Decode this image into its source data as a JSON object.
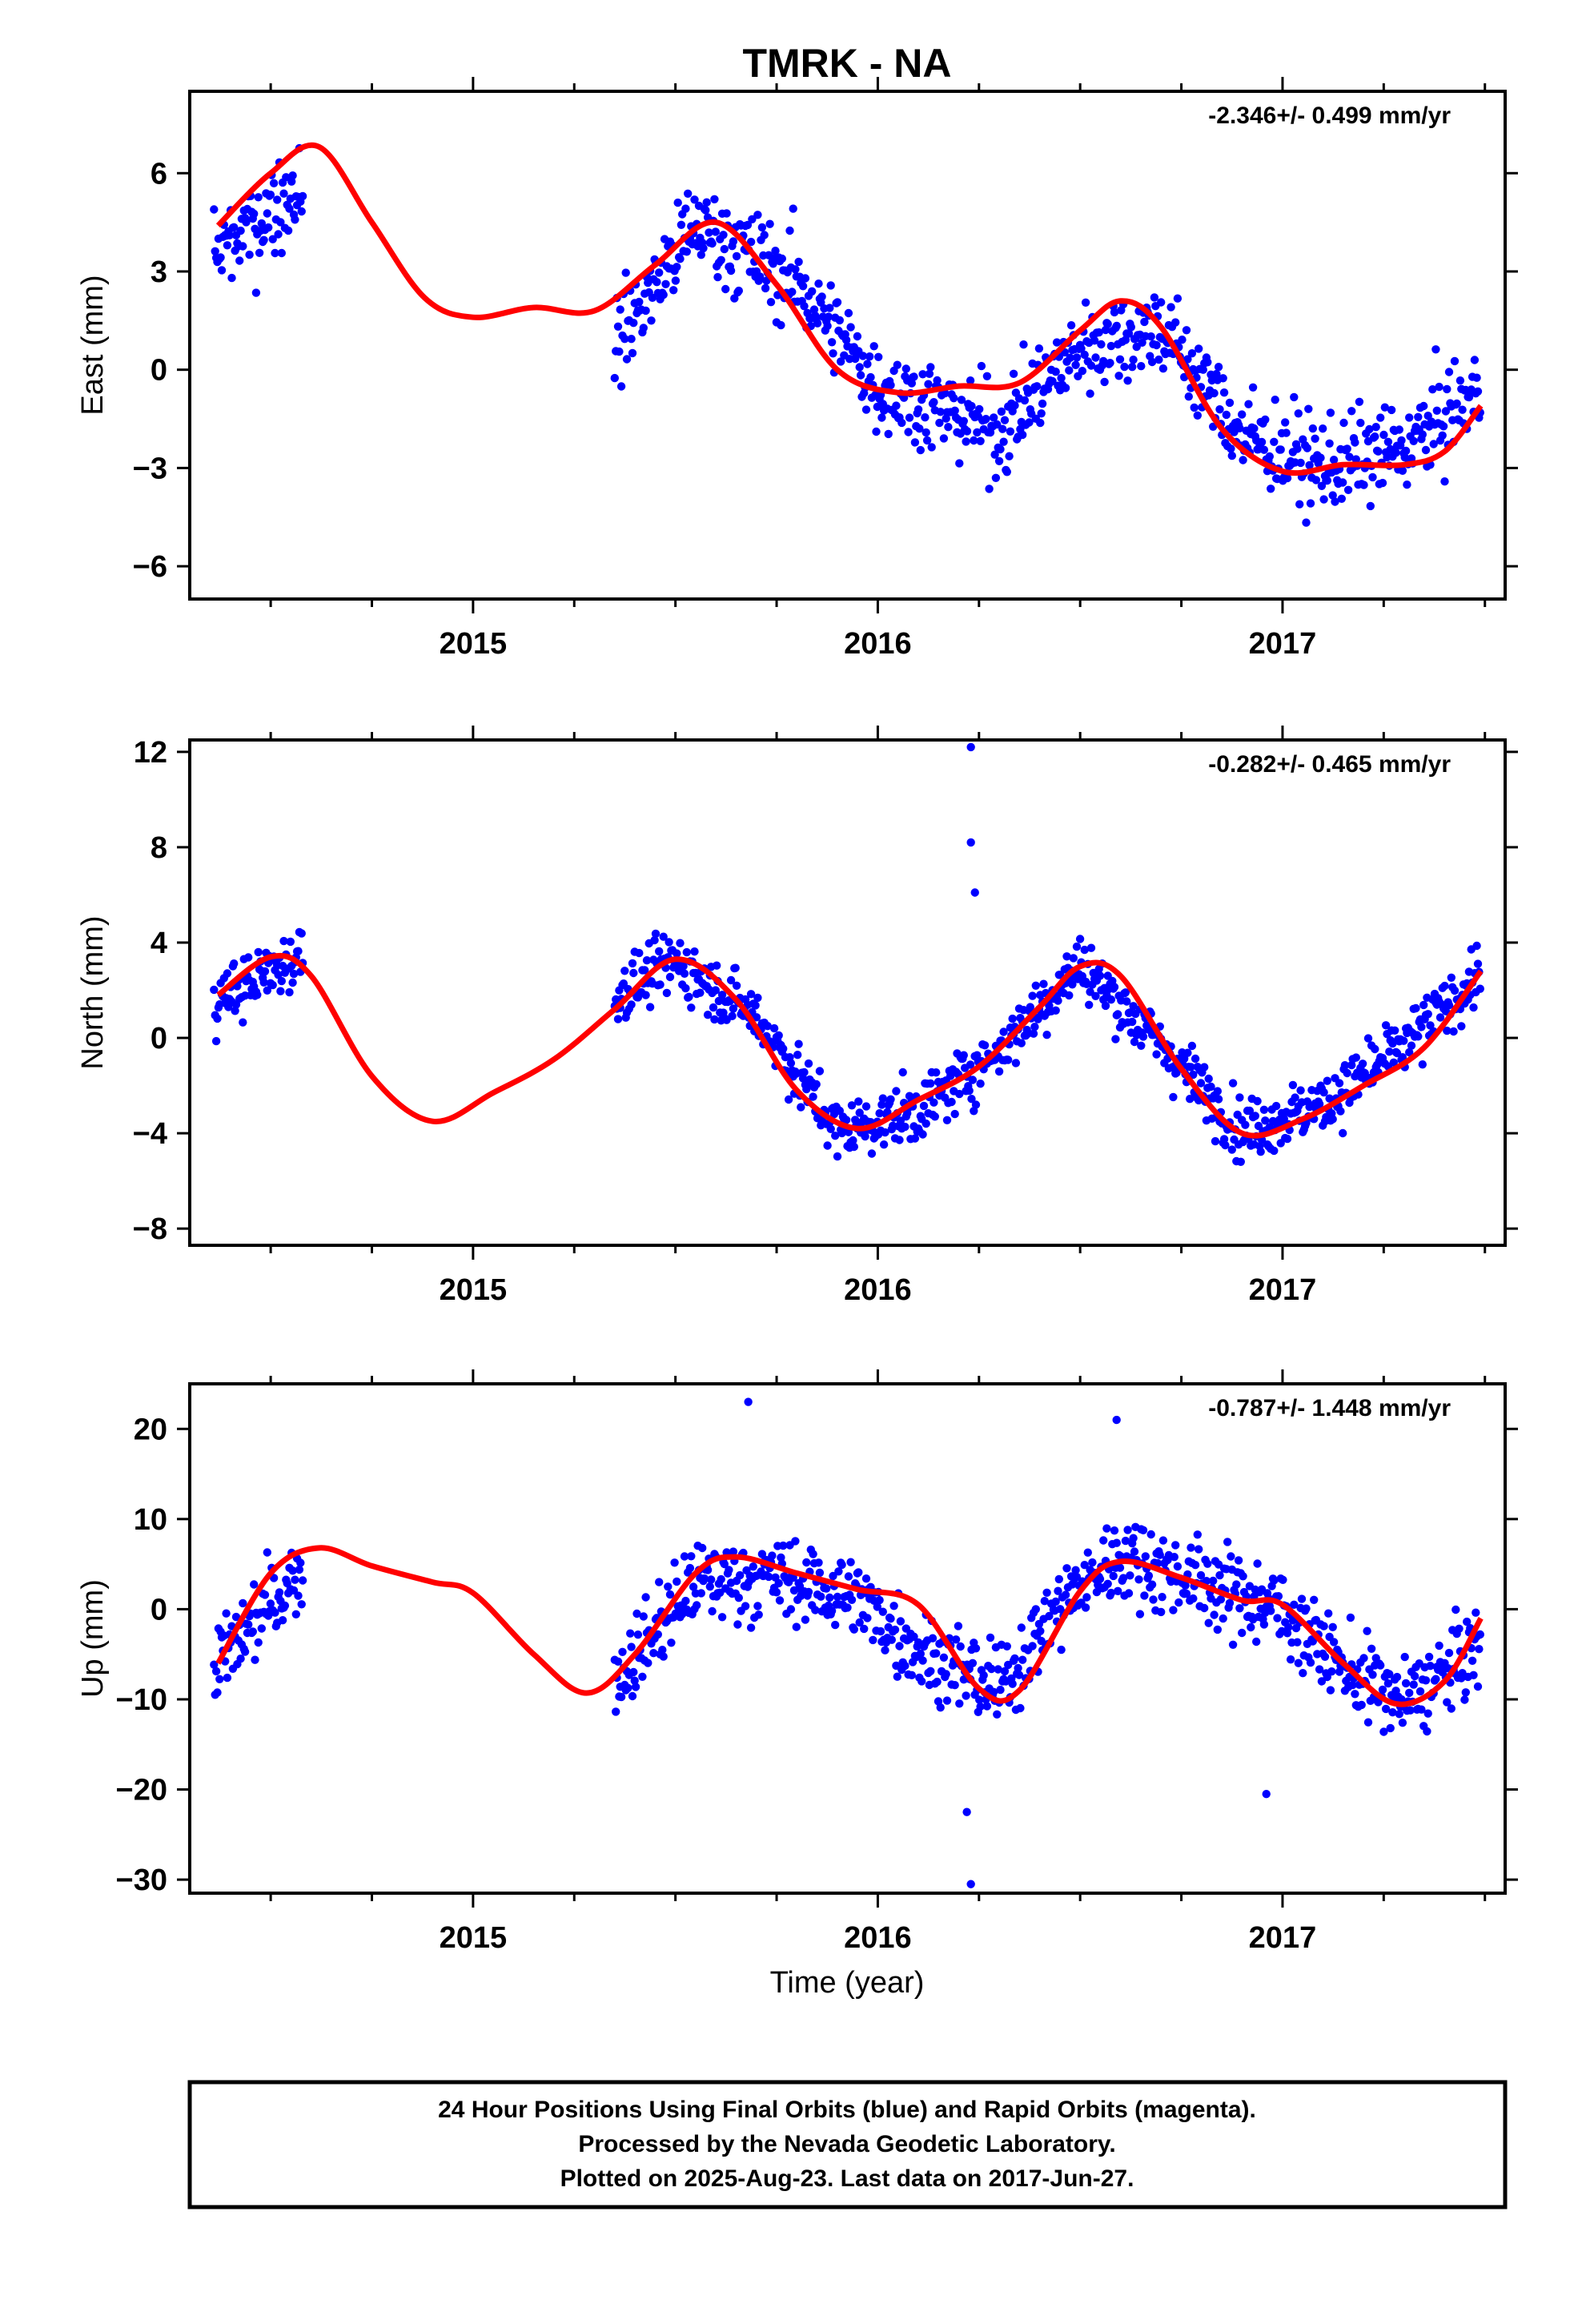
{
  "title": "TMRK - NA",
  "xlabel": "Time (year)",
  "footer": {
    "lines": [
      "24 Hour Positions Using Final Orbits (blue) and Rapid Orbits (magenta).",
      "Processed by the Nevada Geodetic Laboratory.",
      "Plotted on 2025-Aug-23. Last data on 2017-Jun-27."
    ]
  },
  "colors": {
    "points": "#0000ff",
    "fit": "#ff0000",
    "frame": "#000000"
  },
  "chart_data": [
    {
      "type": "scatter",
      "ylabel": "East (mm)",
      "rate_label": "-2.346+/- 0.499 mm/yr",
      "xlim": [
        2014.3,
        2017.55
      ],
      "ylim": [
        -7,
        8.5
      ],
      "xticks": [
        2015,
        2016,
        2017
      ],
      "yticks": [
        -6,
        -3,
        0,
        3,
        6
      ],
      "segments": [
        {
          "x": [
            2014.36,
            2014.58
          ],
          "y": [
            3.4,
            5.7
          ]
        },
        {
          "x": [
            2015.35,
            2015.55,
            2015.8,
            2016.0,
            2016.3,
            2016.5,
            2016.7,
            2016.9,
            2017.1,
            2017.3,
            2017.49
          ],
          "y": [
            0.8,
            4.4,
            2.7,
            -0.5,
            -1.9,
            0.7,
            1.3,
            -2.0,
            -3.0,
            -2.4,
            -0.6
          ]
        }
      ],
      "fit": {
        "x": [
          2014.37,
          2014.5,
          2014.62,
          2014.75,
          2014.88,
          2015.0,
          2015.15,
          2015.3,
          2015.45,
          2015.6,
          2015.75,
          2015.9,
          2016.05,
          2016.2,
          2016.35,
          2016.5,
          2016.6,
          2016.7,
          2016.85,
          2017.0,
          2017.15,
          2017.3,
          2017.4,
          2017.49
        ],
        "y": [
          4.4,
          6.0,
          6.8,
          4.5,
          2.2,
          1.6,
          1.9,
          1.8,
          3.2,
          4.5,
          2.6,
          0.0,
          -0.7,
          -0.5,
          -0.4,
          1.2,
          2.1,
          1.3,
          -1.8,
          -3.1,
          -2.9,
          -2.9,
          -2.5,
          -1.1
        ]
      }
    },
    {
      "type": "scatter",
      "ylabel": "North (mm)",
      "rate_label": "-0.282+/- 0.465 mm/yr",
      "xlim": [
        2014.3,
        2017.55
      ],
      "ylim": [
        -8.7,
        12.5
      ],
      "xticks": [
        2015,
        2016,
        2017
      ],
      "yticks": [
        -8,
        -4,
        0,
        4,
        8,
        12
      ],
      "segments": [
        {
          "x": [
            2014.36,
            2014.58
          ],
          "y": [
            1.5,
            3.5
          ]
        },
        {
          "x": [
            2015.35,
            2015.5,
            2015.7,
            2015.9,
            2016.1,
            2016.3,
            2016.5,
            2016.7,
            2016.9,
            2017.1,
            2017.3,
            2017.49
          ],
          "y": [
            1.8,
            3.2,
            0.9,
            -3.9,
            -3.1,
            -0.5,
            3.1,
            -0.3,
            -3.9,
            -2.8,
            -0.3,
            2.7
          ]
        }
      ],
      "outliers": {
        "x": [
          2016.23,
          2016.23,
          2016.24
        ],
        "y": [
          12.2,
          8.2,
          6.1
        ]
      },
      "fit": {
        "x": [
          2014.37,
          2014.5,
          2014.6,
          2014.75,
          2014.9,
          2015.05,
          2015.2,
          2015.35,
          2015.5,
          2015.65,
          2015.8,
          2015.95,
          2016.1,
          2016.25,
          2016.4,
          2016.5,
          2016.6,
          2016.75,
          2016.9,
          2017.05,
          2017.2,
          2017.35,
          2017.49
        ],
        "y": [
          1.8,
          3.4,
          2.6,
          -1.6,
          -3.5,
          -2.3,
          -0.9,
          1.2,
          3.3,
          1.6,
          -2.2,
          -3.8,
          -2.6,
          -1.2,
          1.3,
          3.0,
          2.6,
          -1.3,
          -4.0,
          -3.4,
          -2.0,
          -0.4,
          2.8
        ]
      }
    },
    {
      "type": "scatter",
      "ylabel": "Up (mm)",
      "rate_label": "-0.787+/- 1.448 mm/yr",
      "xlim": [
        2014.3,
        2017.55
      ],
      "ylim": [
        -31.5,
        25
      ],
      "xticks": [
        2015,
        2016,
        2017
      ],
      "yticks": [
        -30,
        -20,
        -10,
        0,
        10,
        20
      ],
      "segments": [
        {
          "x": [
            2014.36,
            2014.58
          ],
          "y": [
            -6.5,
            4.5
          ]
        },
        {
          "x": [
            2015.35,
            2015.55,
            2015.75,
            2015.95,
            2016.1,
            2016.3,
            2016.45,
            2016.6,
            2016.8,
            2017.0,
            2017.15,
            2017.3,
            2017.49
          ],
          "y": [
            -8.0,
            3.0,
            3.5,
            1.2,
            -4.5,
            -9.0,
            0.5,
            6.0,
            3.0,
            0.0,
            -6.5,
            -10.5,
            -4.0
          ]
        }
      ],
      "outliers": {
        "x": [
          2016.23,
          2016.22,
          2015.68,
          2016.59,
          2016.96
        ],
        "y": [
          -30.5,
          -22.5,
          23.0,
          21.0,
          -20.5
        ]
      },
      "fit": {
        "x": [
          2014.37,
          2014.5,
          2014.62,
          2014.75,
          2014.9,
          2015.0,
          2015.15,
          2015.28,
          2015.4,
          2015.55,
          2015.65,
          2015.8,
          2015.95,
          2016.1,
          2016.25,
          2016.35,
          2016.5,
          2016.6,
          2016.75,
          2016.9,
          2017.0,
          2017.15,
          2017.28,
          2017.4,
          2017.49
        ],
        "y": [
          -6.0,
          4.0,
          6.8,
          4.8,
          3.0,
          1.8,
          -5.0,
          -9.3,
          -5.0,
          4.0,
          5.8,
          4.0,
          2.2,
          0.5,
          -8.8,
          -9.0,
          2.0,
          5.3,
          3.5,
          1.0,
          0.5,
          -6.0,
          -10.5,
          -8.0,
          -1.0
        ]
      }
    }
  ]
}
